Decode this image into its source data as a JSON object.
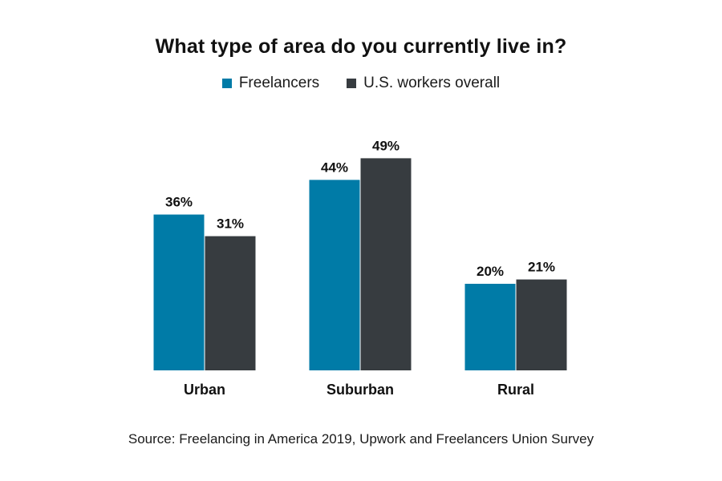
{
  "chart_data": {
    "type": "bar",
    "title": "What type of area do you currently live in?",
    "categories": [
      "Urban",
      "Suburban",
      "Rural"
    ],
    "series": [
      {
        "name": "Freelancers",
        "values": [
          36,
          44,
          20
        ],
        "labels": [
          "36%",
          "44%",
          "20%"
        ],
        "color": "#007BA7"
      },
      {
        "name": "U.S. workers overall",
        "values": [
          31,
          49,
          21
        ],
        "labels": [
          "31%",
          "49%",
          "21%"
        ],
        "color": "#373C40"
      }
    ],
    "unit": "%",
    "ylim": [
      0,
      50
    ],
    "grid": false,
    "legend_position": "top-center"
  },
  "source": {
    "prefix": "Source:",
    "text": "Freelancing in America 2019, Upwork and Freelancers Union Survey"
  }
}
